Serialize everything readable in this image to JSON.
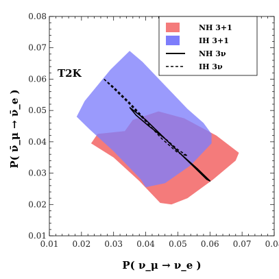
{
  "chart_data": {
    "type": "area",
    "panel_label": "T2K",
    "xlabel": "P( ν_μ → ν_e )",
    "ylabel": "P( ν̄_μ → ν̄_e )",
    "xlim": [
      0.01,
      0.08
    ],
    "ylim": [
      0.01,
      0.08
    ],
    "xticks": [
      0.01,
      0.02,
      0.03,
      0.04,
      0.05,
      0.06,
      0.07,
      0.08
    ],
    "yticks": [
      0.01,
      0.02,
      0.03,
      0.04,
      0.05,
      0.06,
      0.07,
      0.08
    ],
    "x_tick_labels": [
      "0.01",
      "0.02",
      "0.03",
      "0.04",
      "0.05",
      "0.06",
      "0.07",
      "0.08"
    ],
    "y_tick_labels": [
      "0.01",
      "0.02",
      "0.03",
      "0.04",
      "0.05",
      "0.06",
      "0.07",
      "0.08"
    ],
    "grid": false,
    "legend_position": "top-right",
    "series": [
      {
        "name": "NH 3+1",
        "kind": "region",
        "color": "#f47b7b",
        "points": [
          [
            0.0335,
            0.0434
          ],
          [
            0.036,
            0.047
          ],
          [
            0.044,
            0.0497
          ],
          [
            0.052,
            0.0475
          ],
          [
            0.062,
            0.042
          ],
          [
            0.069,
            0.0365
          ],
          [
            0.068,
            0.034
          ],
          [
            0.061,
            0.028
          ],
          [
            0.053,
            0.022
          ],
          [
            0.048,
            0.02
          ],
          [
            0.0445,
            0.0205
          ],
          [
            0.038,
            0.0275
          ],
          [
            0.03,
            0.035
          ],
          [
            0.023,
            0.0395
          ],
          [
            0.025,
            0.0425
          ]
        ]
      },
      {
        "name": "IH 3+1",
        "kind": "region",
        "color": "#7d7dfb",
        "points": [
          [
            0.035,
            0.069
          ],
          [
            0.039,
            0.0655
          ],
          [
            0.046,
            0.058
          ],
          [
            0.053,
            0.0505
          ],
          [
            0.058,
            0.046
          ],
          [
            0.0605,
            0.0425
          ],
          [
            0.0605,
            0.0395
          ],
          [
            0.054,
            0.0325
          ],
          [
            0.046,
            0.0268
          ],
          [
            0.04,
            0.0255
          ],
          [
            0.0385,
            0.028
          ],
          [
            0.03,
            0.037
          ],
          [
            0.0225,
            0.044
          ],
          [
            0.0185,
            0.048
          ],
          [
            0.021,
            0.053
          ],
          [
            0.029,
            0.063
          ]
        ]
      },
      {
        "name": "NH 3ν",
        "kind": "curve",
        "line_style": "solid",
        "color": "#000000",
        "points": [
          [
            0.035,
            0.051
          ],
          [
            0.04,
            0.047
          ],
          [
            0.045,
            0.042
          ],
          [
            0.05,
            0.037
          ],
          [
            0.055,
            0.032
          ],
          [
            0.059,
            0.028
          ],
          [
            0.06,
            0.0275
          ],
          [
            0.056,
            0.0315
          ],
          [
            0.051,
            0.036
          ],
          [
            0.046,
            0.041
          ],
          [
            0.041,
            0.045
          ],
          [
            0.037,
            0.0485
          ],
          [
            0.035,
            0.051
          ]
        ]
      },
      {
        "name": "IH 3ν",
        "kind": "curve",
        "line_style": "dashed",
        "color": "#000000",
        "points": [
          [
            0.027,
            0.06
          ],
          [
            0.03,
            0.057
          ],
          [
            0.035,
            0.052
          ],
          [
            0.04,
            0.0465
          ],
          [
            0.045,
            0.041
          ],
          [
            0.05,
            0.0365
          ],
          [
            0.053,
            0.0355
          ],
          [
            0.05,
            0.0375
          ],
          [
            0.045,
            0.042
          ],
          [
            0.04,
            0.047
          ],
          [
            0.035,
            0.0525
          ],
          [
            0.03,
            0.0575
          ],
          [
            0.027,
            0.06
          ]
        ]
      }
    ]
  }
}
